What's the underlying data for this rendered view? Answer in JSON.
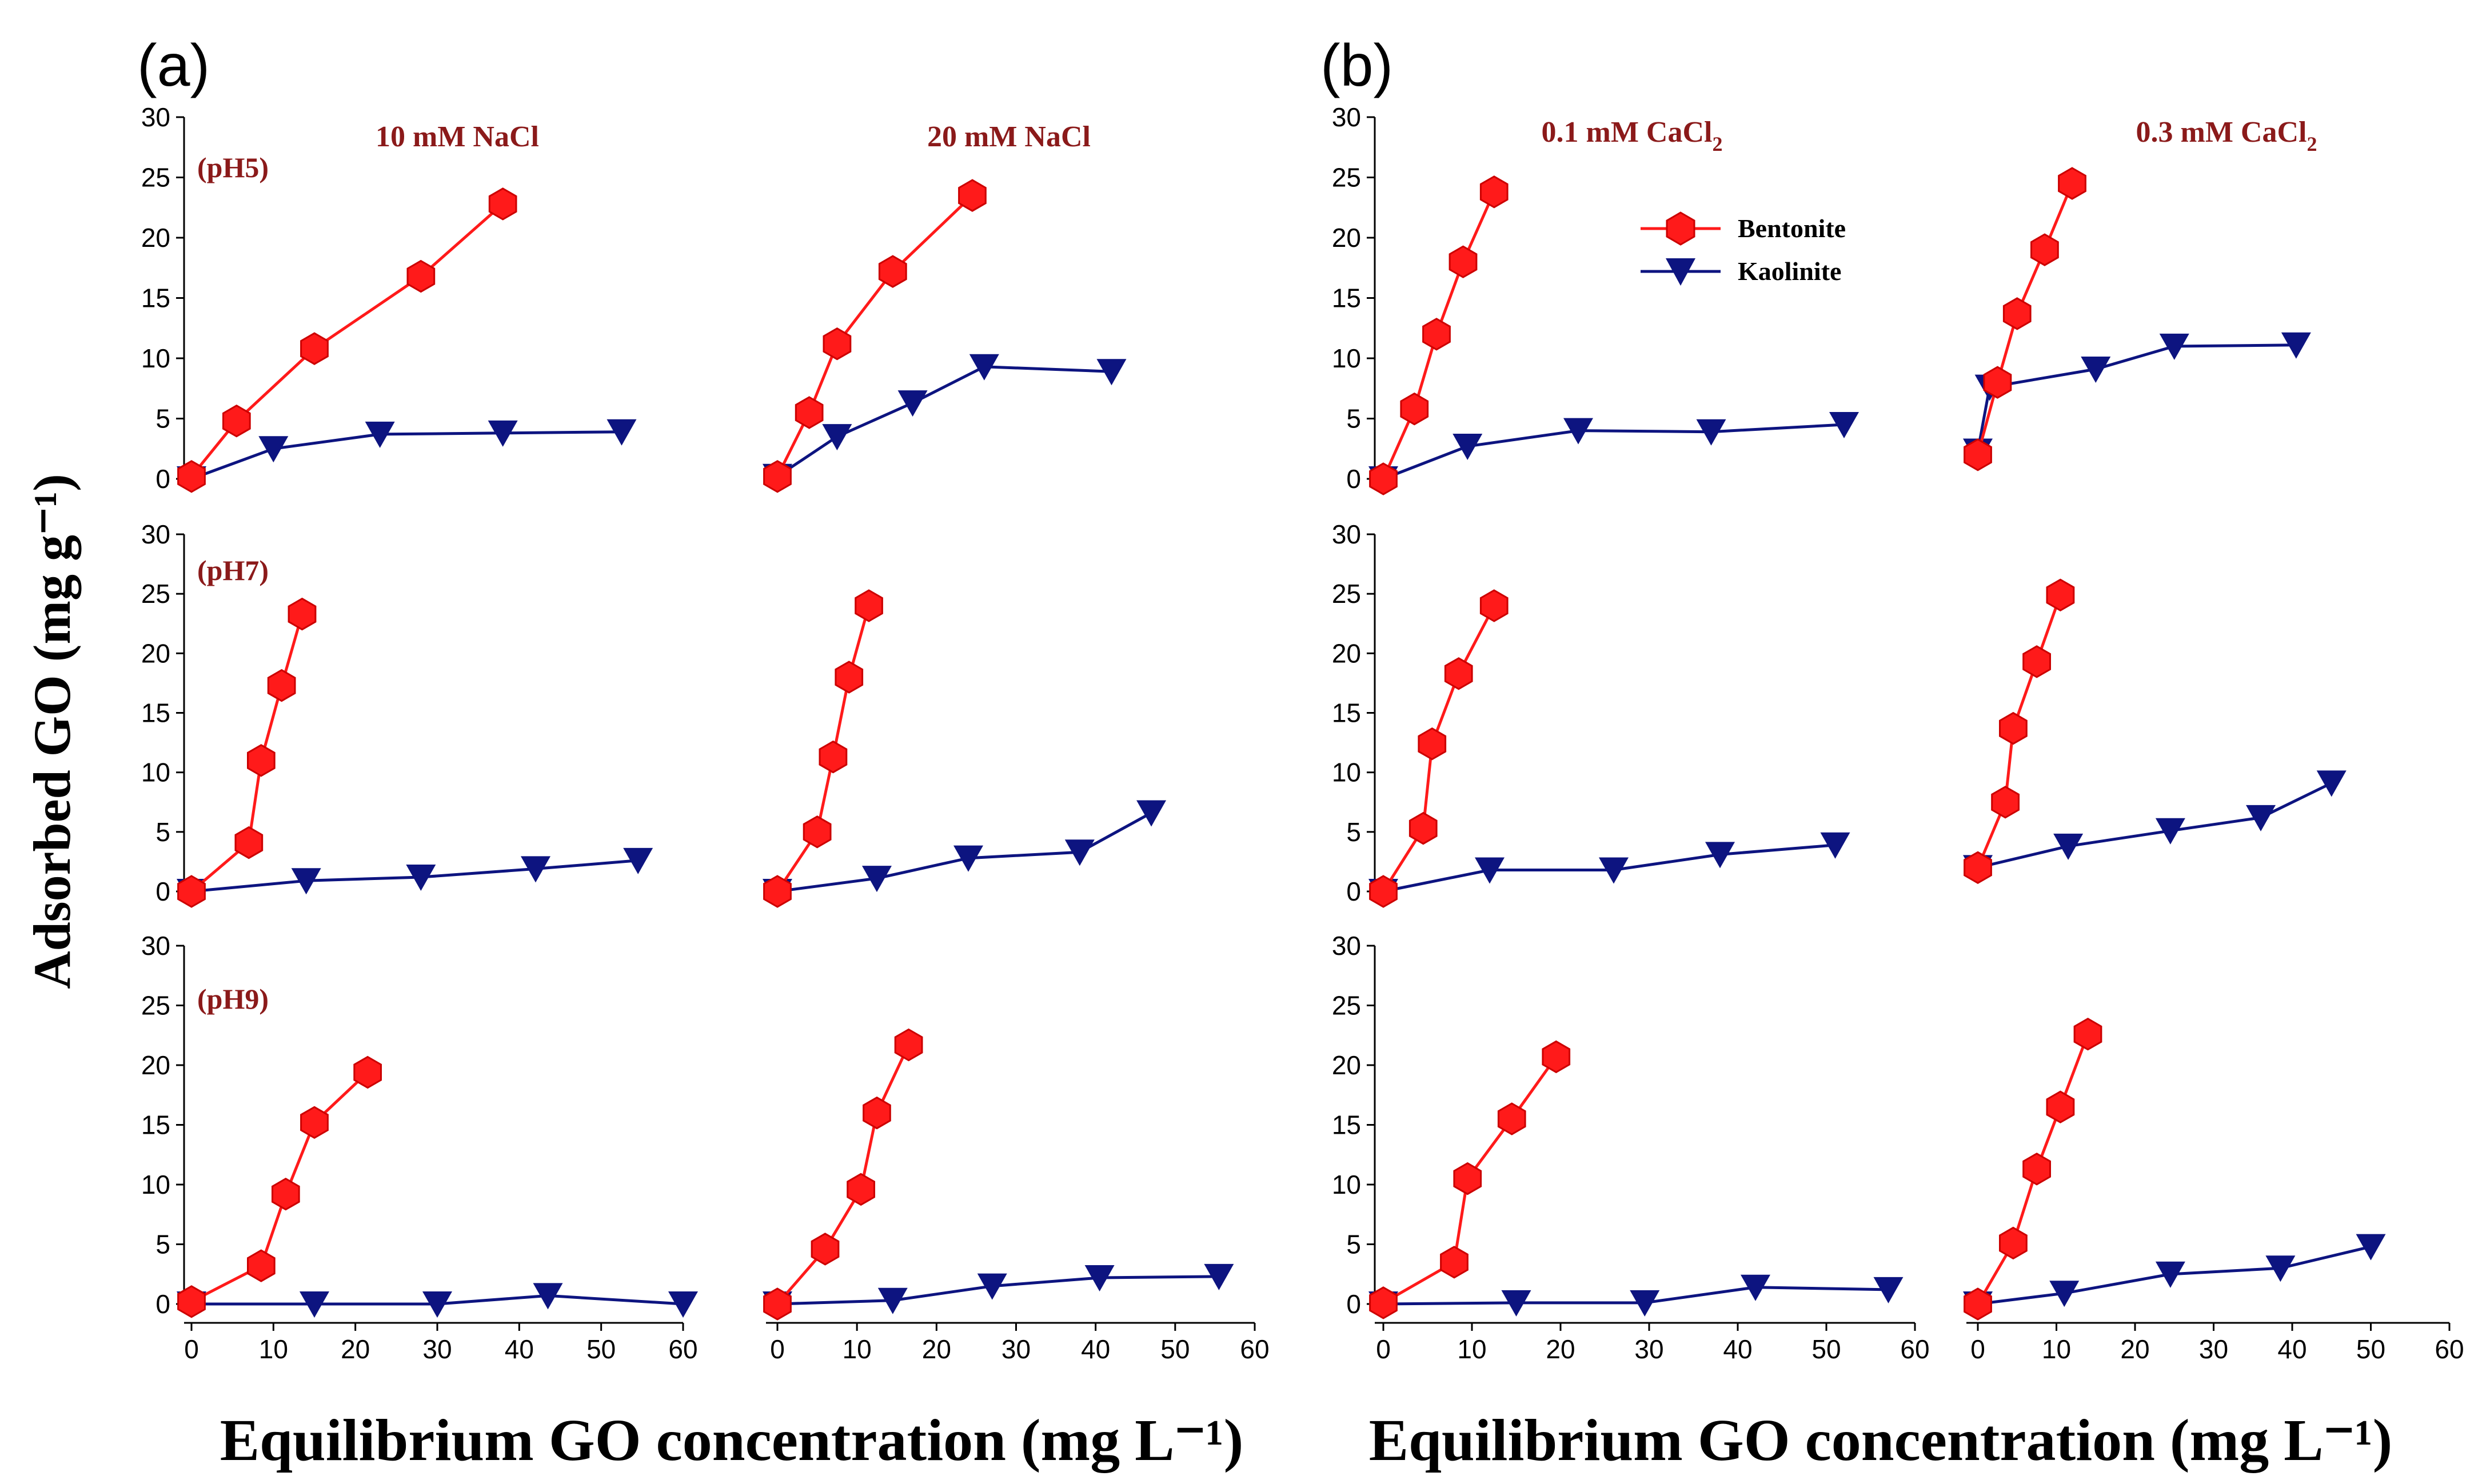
{
  "panel_labels": [
    "(a)",
    "(b)"
  ],
  "shared_xlabel": "Equilibrium GO concentration (mg L⁻¹)",
  "shared_ylabel": "Adsorbed GO (mg g⁻¹)",
  "column_titles": [
    {
      "text": "10 mM NaCl"
    },
    {
      "text": "20 mM NaCl"
    },
    {
      "text": "0.1 mM CaCl",
      "sub": "2"
    },
    {
      "text": "0.3 mM CaCl",
      "sub": "2"
    }
  ],
  "row_labels": [
    "(pH5)",
    "(pH7)",
    "(pH9)"
  ],
  "legend": {
    "position": "top-right of panel (b) first row",
    "items": [
      "Bentonite",
      "Kaolinite"
    ]
  },
  "colors": {
    "bentonite": "#ff1a1a",
    "bentonite_edge": "#cc0000",
    "kaolinite": "#0d1480",
    "title_red": "#8b1a1a"
  },
  "axes": {
    "xlim": [
      0,
      60
    ],
    "ylim": [
      0,
      30
    ],
    "xticks": [
      "0",
      "10",
      "20",
      "30",
      "40",
      "50",
      "60"
    ],
    "yticks": [
      "0",
      "5",
      "10",
      "15",
      "20",
      "25",
      "30"
    ]
  },
  "chart_data": [
    {
      "type": "line",
      "panel": "a",
      "condition": "10 mM NaCl",
      "pH": "pH5",
      "series": [
        {
          "name": "Bentonite",
          "x": [
            0,
            5.5,
            15,
            28,
            38
          ],
          "y": [
            0.2,
            4.8,
            10.8,
            16.8,
            22.8
          ]
        },
        {
          "name": "Kaolinite",
          "x": [
            0,
            10,
            23,
            38,
            52.5
          ],
          "y": [
            0,
            2.5,
            3.7,
            3.8,
            3.9
          ]
        }
      ]
    },
    {
      "type": "line",
      "panel": "a",
      "condition": "20 mM NaCl",
      "pH": "pH5",
      "series": [
        {
          "name": "Bentonite",
          "x": [
            0,
            4,
            7.5,
            14.5,
            24.5
          ],
          "y": [
            0.2,
            5.5,
            11.2,
            17.2,
            23.5
          ]
        },
        {
          "name": "Kaolinite",
          "x": [
            0,
            7.5,
            17,
            26,
            42
          ],
          "y": [
            0.2,
            3.5,
            6.3,
            9.3,
            8.9
          ]
        }
      ]
    },
    {
      "type": "line",
      "panel": "b",
      "condition": "0.1 mM CaCl2",
      "pH": "pH5",
      "series": [
        {
          "name": "Bentonite",
          "x": [
            0,
            3.5,
            6,
            9,
            12.5
          ],
          "y": [
            0,
            5.8,
            12,
            18,
            23.8
          ]
        },
        {
          "name": "Kaolinite",
          "x": [
            0,
            9.5,
            22,
            37,
            52
          ],
          "y": [
            0,
            2.7,
            4,
            3.9,
            4.5
          ]
        }
      ]
    },
    {
      "type": "line",
      "panel": "b",
      "condition": "0.3 mM CaCl2",
      "pH": "pH5",
      "series": [
        {
          "name": "Bentonite",
          "x": [
            0,
            2.5,
            5,
            8.5,
            12
          ],
          "y": [
            2,
            8,
            13.7,
            19,
            24.5
          ]
        },
        {
          "name": "Kaolinite",
          "x": [
            0,
            1.5,
            15,
            25,
            40.5
          ],
          "y": [
            2.3,
            7.6,
            9.1,
            11,
            11.1
          ]
        }
      ]
    },
    {
      "type": "line",
      "panel": "a",
      "condition": "10 mM NaCl",
      "pH": "pH7",
      "series": [
        {
          "name": "Bentonite",
          "x": [
            0,
            7,
            8.5,
            11,
            13.5
          ],
          "y": [
            0,
            4.1,
            11,
            17.3,
            23.3
          ]
        },
        {
          "name": "Kaolinite",
          "x": [
            0,
            14,
            28,
            42,
            54.5
          ],
          "y": [
            0,
            0.9,
            1.2,
            1.9,
            2.6
          ]
        }
      ]
    },
    {
      "type": "line",
      "panel": "a",
      "condition": "20 mM NaCl",
      "pH": "pH7",
      "series": [
        {
          "name": "Bentonite",
          "x": [
            0,
            5,
            7,
            9,
            11.5
          ],
          "y": [
            0,
            5,
            11.3,
            18,
            24
          ]
        },
        {
          "name": "Kaolinite",
          "x": [
            0,
            12.5,
            24,
            38,
            47
          ],
          "y": [
            0,
            1.1,
            2.8,
            3.3,
            6.6
          ]
        }
      ]
    },
    {
      "type": "line",
      "panel": "b",
      "condition": "0.1 mM CaCl2",
      "pH": "pH7",
      "series": [
        {
          "name": "Bentonite",
          "x": [
            0,
            4.5,
            5.5,
            8.5,
            12.5
          ],
          "y": [
            0,
            5.3,
            12.4,
            18.3,
            24
          ]
        },
        {
          "name": "Kaolinite",
          "x": [
            0,
            12,
            26,
            38,
            51
          ],
          "y": [
            0,
            1.8,
            1.8,
            3.1,
            3.9
          ]
        }
      ]
    },
    {
      "type": "line",
      "panel": "b",
      "condition": "0.3 mM CaCl2",
      "pH": "pH7",
      "series": [
        {
          "name": "Bentonite",
          "x": [
            0,
            3.5,
            4.5,
            7.5,
            10.5
          ],
          "y": [
            2,
            7.5,
            13.7,
            19.3,
            24.9
          ]
        },
        {
          "name": "Kaolinite",
          "x": [
            0,
            11.5,
            24.5,
            36,
            45
          ],
          "y": [
            2,
            3.8,
            5.1,
            6.2,
            9.1
          ]
        }
      ]
    },
    {
      "type": "line",
      "panel": "a",
      "condition": "10 mM NaCl",
      "pH": "pH9",
      "series": [
        {
          "name": "Bentonite",
          "x": [
            0,
            8.5,
            11.5,
            15,
            21.5
          ],
          "y": [
            0.2,
            3.2,
            9.2,
            15.2,
            19.4
          ]
        },
        {
          "name": "Kaolinite",
          "x": [
            0,
            15,
            30,
            43.5,
            60
          ],
          "y": [
            0,
            0,
            0,
            0.7,
            0
          ]
        }
      ]
    },
    {
      "type": "line",
      "panel": "a",
      "condition": "20 mM NaCl",
      "pH": "pH9",
      "series": [
        {
          "name": "Bentonite",
          "x": [
            0,
            6,
            10.5,
            12.5,
            16.5
          ],
          "y": [
            0,
            4.6,
            9.6,
            16,
            21.7
          ]
        },
        {
          "name": "Kaolinite",
          "x": [
            0,
            14.5,
            27,
            40.5,
            55.5
          ],
          "y": [
            0,
            0.3,
            1.5,
            2.2,
            2.3
          ]
        }
      ]
    },
    {
      "type": "line",
      "panel": "b",
      "condition": "0.1 mM CaCl2",
      "pH": "pH9",
      "series": [
        {
          "name": "Bentonite",
          "x": [
            0,
            8,
            9.5,
            14.5,
            19.5
          ],
          "y": [
            0.1,
            3.5,
            10.5,
            15.5,
            20.7
          ]
        },
        {
          "name": "Kaolinite",
          "x": [
            0,
            15,
            29.5,
            42,
            57
          ],
          "y": [
            0,
            0.1,
            0.1,
            1.4,
            1.2
          ]
        }
      ]
    },
    {
      "type": "line",
      "panel": "b",
      "condition": "0.3 mM CaCl2",
      "pH": "pH9",
      "series": [
        {
          "name": "Bentonite",
          "x": [
            0,
            4.5,
            7.5,
            10.5,
            14
          ],
          "y": [
            0,
            5.1,
            11.3,
            16.5,
            22.6
          ]
        },
        {
          "name": "Kaolinite",
          "x": [
            0,
            11,
            24.5,
            38.5,
            50
          ],
          "y": [
            0,
            0.9,
            2.5,
            3,
            4.8
          ]
        }
      ]
    }
  ]
}
